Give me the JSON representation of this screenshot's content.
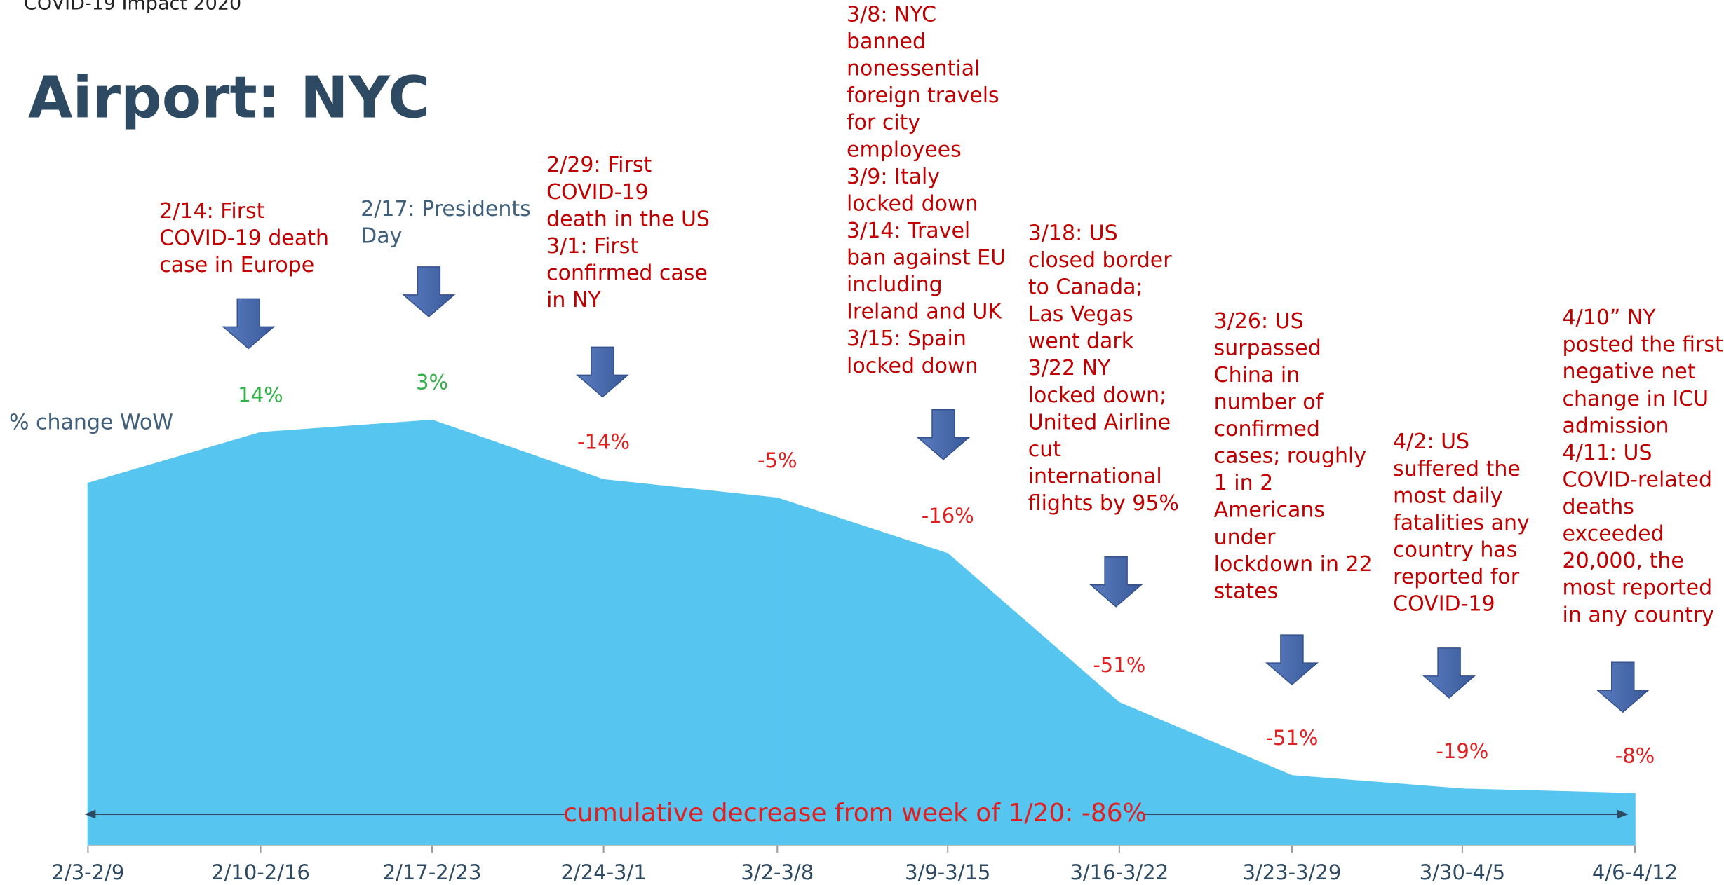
{
  "chart_data": {
    "type": "area",
    "header": "COVID-19 Impact 2020",
    "title": "Airport: NYC",
    "y_label": "% change WoW",
    "categories": [
      "2/3-2/9",
      "2/10-2/16",
      "2/17-2/23",
      "2/24-3/1",
      "3/2-3/8",
      "3/9-3/15",
      "3/16-3/22",
      "3/23-3/29",
      "3/30-4/5",
      "4/6-4/12"
    ],
    "series": [
      {
        "color": "#56c5f0",
        "values": [
          null,
          14,
          3,
          -14,
          -5,
          -16,
          -51,
          -51,
          -19,
          -8
        ],
        "value_labels": [
          null,
          "14%",
          "3%",
          "-14%",
          "-5%",
          "-16%",
          "-51%",
          "-51%",
          "-19%",
          "-8%"
        ]
      }
    ],
    "positive_color": "#33b04a",
    "negative_color": "#e02020",
    "summary": "cumulative decrease from week of 1/20: -86%",
    "annotations": [
      {
        "color": "#c00000",
        "lines": [
          "2/14: First",
          "COVID-19 death",
          "case in Europe"
        ]
      },
      {
        "color": "#3f5f7a",
        "lines": [
          "2/17: Presidents",
          "Day"
        ]
      },
      {
        "color": "#c00000",
        "lines": [
          "2/29: First",
          "COVID-19",
          "death in the US",
          "3/1: First",
          "confirmed case",
          "in NY"
        ]
      },
      {
        "color": "#c00000",
        "lines": [
          "3/8: NYC",
          "banned",
          "nonessential",
          "foreign travels",
          "for city",
          "employees",
          "3/9: Italy",
          "locked down",
          "3/14: Travel",
          "ban against EU",
          "including",
          "Ireland and UK",
          "3/15: Spain",
          "locked down"
        ]
      },
      {
        "color": "#c00000",
        "lines": [
          "3/18: US",
          "closed border",
          "to Canada;",
          "Las Vegas",
          "went dark",
          "3/22 NY",
          "locked down;",
          "United Airline",
          "cut",
          "international",
          "flights by 95%"
        ]
      },
      {
        "color": "#c00000",
        "lines": [
          "3/26: US",
          "surpassed",
          "China in",
          "number of",
          "confirmed",
          "cases; roughly",
          "1 in 2",
          "Americans",
          "under",
          "lockdown in 22",
          "states"
        ]
      },
      {
        "color": "#c00000",
        "lines": [
          "4/2: US",
          "suffered the",
          "most daily",
          "fatalities any",
          "country has",
          "reported for",
          "COVID-19"
        ]
      },
      {
        "color": "#c00000",
        "lines": [
          "4/10” NY",
          "posted the first",
          "negative net",
          "change in ICU",
          "admission",
          "4/11: US",
          "COVID-related",
          "deaths",
          "exceeded",
          "20,000, the",
          "most reported",
          "in any country"
        ]
      }
    ]
  }
}
